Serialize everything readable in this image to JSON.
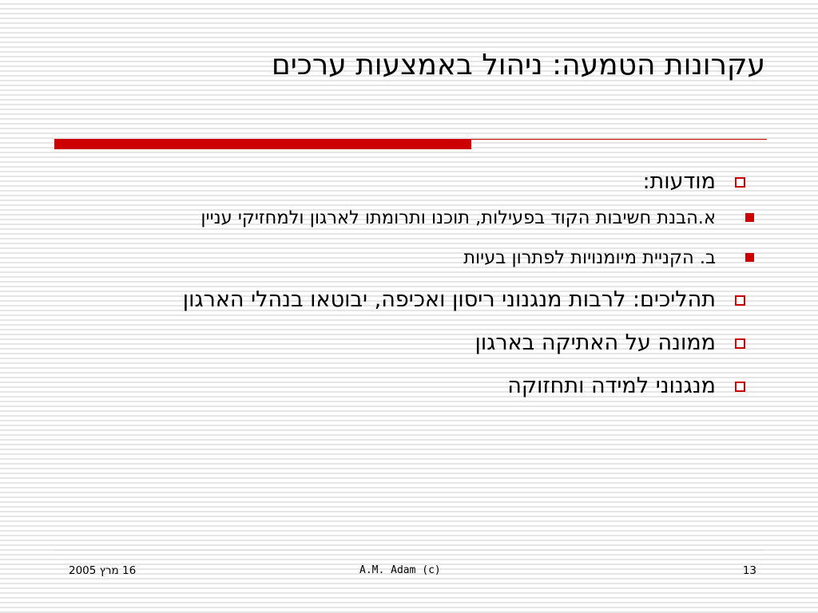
{
  "slide": {
    "title": "עקרונות הטמעה: ניהול באמצעות ערכים",
    "colors": {
      "accent": "#cc0000",
      "text": "#000000",
      "stripe": "#e6e6e6",
      "footer_rule": "#d9d9d9"
    },
    "bullets": [
      {
        "text": "מודעות:",
        "icon": "hollow-square-bullet",
        "sub": [
          {
            "text": "א.הבנת חשיבות הקוד בפעילות, תוכנו ותרומתו לארגון ולמחזיקי עניין",
            "icon": "solid-square-bullet"
          },
          {
            "text": "ב. הקניית מיומנויות לפתרון בעיות",
            "icon": "solid-square-bullet"
          }
        ]
      },
      {
        "text": "תהליכים: לרבות מנגנוני ריסון ואכיפה, יבוטאו בנהלי הארגון",
        "icon": "hollow-square-bullet"
      },
      {
        "text": "ממונה על האתיקה בארגון",
        "icon": "hollow-square-bullet"
      },
      {
        "text": "מנגנוני למידה ותחזוקה",
        "icon": "hollow-square-bullet"
      }
    ]
  },
  "footer": {
    "date": "16 מרץ 2005",
    "author": "A.M. Adam  (c)",
    "page_number": "13"
  }
}
